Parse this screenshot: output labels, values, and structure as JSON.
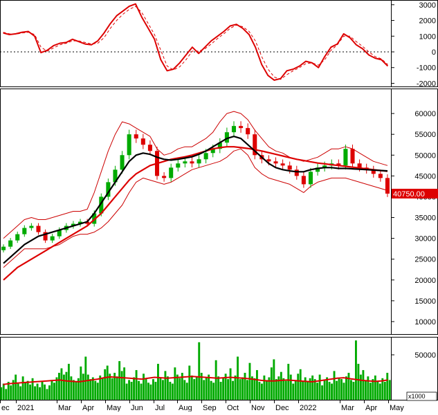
{
  "chart_data": [
    {
      "type": "line",
      "panel": "oscillator",
      "ylim": [
        -2200,
        3300
      ],
      "yticks": [
        "3000",
        "2000",
        "1000",
        "0",
        "-1000",
        "-2000"
      ],
      "ytick_values": [
        3000,
        2000,
        1000,
        0,
        -1000,
        -2000
      ],
      "zero_line": "dotted",
      "colors": {
        "main": "#dd0000",
        "signal": "#dd0000"
      },
      "series": [
        {
          "style": "solid",
          "values": [
            1200,
            1100,
            1150,
            1250,
            1300,
            1000,
            -50,
            100,
            400,
            550,
            600,
            800,
            650,
            500,
            450,
            700,
            1200,
            1800,
            2300,
            2600,
            2900,
            3050,
            2200,
            1500,
            800,
            -500,
            -1200,
            -1100,
            -700,
            -200,
            300,
            -100,
            300,
            700,
            1000,
            1300,
            1650,
            1750,
            1500,
            1100,
            300,
            -800,
            -1500,
            -1800,
            -1700,
            -1200,
            -1100,
            -900,
            -600,
            -700,
            -1000,
            -300,
            300,
            500,
            1150,
            900,
            450,
            200,
            -200,
            -400,
            -500,
            -900
          ]
        },
        {
          "style": "dashed",
          "values": [
            1250,
            1150,
            1120,
            1200,
            1250,
            1100,
            300,
            50,
            250,
            450,
            550,
            700,
            700,
            600,
            500,
            550,
            900,
            1500,
            2000,
            2400,
            2700,
            2900,
            2500,
            1800,
            1100,
            100,
            -900,
            -1150,
            -950,
            -500,
            50,
            50,
            200,
            500,
            850,
            1150,
            1500,
            1700,
            1600,
            1300,
            700,
            -300,
            -1100,
            -1600,
            -1750,
            -1450,
            -1200,
            -1000,
            -750,
            -700,
            -850,
            -500,
            100,
            450,
            1000,
            1000,
            650,
            350,
            0,
            -300,
            -450,
            -800
          ]
        }
      ]
    },
    {
      "type": "candlestick",
      "panel": "price",
      "ylim": [
        7000,
        66000
      ],
      "yticks": [
        "60000",
        "55000",
        "50000",
        "45000",
        "40000",
        "35000",
        "30000",
        "25000",
        "20000",
        "15000",
        "10000"
      ],
      "ytick_values": [
        60000,
        55000,
        50000,
        45000,
        40000,
        35000,
        30000,
        25000,
        20000,
        15000,
        10000
      ],
      "last_price_label": "40750.00",
      "last_price": 40750,
      "colors": {
        "up": "#00aa00",
        "down": "#dd0000",
        "ma_short": "#000000",
        "ma_long": "#dd0000",
        "bands": "#cc0000",
        "label_bg": "#dd0000"
      },
      "close": [
        28000,
        29500,
        31000,
        32500,
        33000,
        31500,
        29500,
        30500,
        32000,
        33000,
        33500,
        34000,
        33500,
        36000,
        40000,
        43500,
        46500,
        50000,
        55000,
        54000,
        52500,
        51000,
        45000,
        44500,
        47000,
        48000,
        48500,
        48000,
        49000,
        50500,
        51500,
        53000,
        55500,
        57000,
        56500,
        55000,
        50000,
        49000,
        48500,
        48000,
        47500,
        46500,
        45000,
        43000,
        46000,
        47000,
        47500,
        48000,
        47500,
        51500,
        48000,
        47000,
        46500,
        45500,
        44500,
        40750
      ],
      "ma_short": [
        24000,
        25500,
        27000,
        28500,
        29500,
        30500,
        31000,
        31500,
        32000,
        32500,
        33000,
        33500,
        34000,
        36000,
        38500,
        41000,
        43500,
        46000,
        48500,
        50000,
        50500,
        50200,
        49500,
        49000,
        48800,
        49000,
        49300,
        49600,
        50200,
        51000,
        52000,
        53000,
        54000,
        54500,
        54000,
        52500,
        51000,
        49500,
        48000,
        47000,
        46500,
        46200,
        46000,
        46000,
        46500,
        46800,
        47000,
        47000,
        46800,
        46800,
        46700,
        46600,
        46500,
        46400,
        46300,
        46200
      ],
      "ma_long": [
        20000,
        21500,
        23000,
        24000,
        25000,
        26000,
        27000,
        28000,
        29000,
        30000,
        31000,
        32000,
        33000,
        34500,
        36000,
        38000,
        40000,
        42000,
        44000,
        45500,
        46500,
        47500,
        48000,
        48500,
        49000,
        49300,
        49600,
        50000,
        50500,
        51000,
        51500,
        51800,
        52000,
        52000,
        51800,
        51600,
        51300,
        51000,
        50600,
        50200,
        49800,
        49400,
        49000,
        48700,
        48400,
        48100,
        47900,
        47700,
        47500,
        47300,
        47100,
        46900,
        46700,
        46500,
        46300,
        46100
      ],
      "band_upper": [
        30000,
        31500,
        33000,
        34500,
        35000,
        34500,
        34500,
        35000,
        35500,
        36000,
        36500,
        36500,
        37000,
        41000,
        46000,
        51000,
        55000,
        58000,
        57500,
        56500,
        55500,
        54500,
        51500,
        50000,
        50500,
        51500,
        52000,
        52000,
        53000,
        54000,
        55500,
        58000,
        60000,
        60500,
        60000,
        58500,
        56000,
        54000,
        52000,
        51000,
        50500,
        49500,
        49000,
        48500,
        49000,
        49500,
        50500,
        51500,
        51500,
        52000,
        51500,
        50500,
        49500,
        48500,
        48000,
        47500
      ],
      "band_lower": [
        23000,
        24500,
        26000,
        27500,
        27500,
        27500,
        27500,
        28000,
        28500,
        29500,
        30500,
        31000,
        31000,
        31500,
        32500,
        34000,
        36000,
        38000,
        41000,
        43500,
        44500,
        44000,
        43500,
        43000,
        43500,
        44500,
        45500,
        46500,
        47000,
        47500,
        48000,
        48500,
        49500,
        51000,
        51500,
        50000,
        47000,
        45500,
        44500,
        44000,
        43500,
        43000,
        42000,
        41000,
        42500,
        43500,
        44000,
        44500,
        44500,
        44500,
        44000,
        43500,
        43000,
        42500,
        42000,
        41500
      ]
    },
    {
      "type": "bar",
      "panel": "volume",
      "ylim": [
        0,
        70000
      ],
      "yticks": [
        "50000"
      ],
      "ytick_values": [
        50000
      ],
      "unit_label": "x1000",
      "colors": {
        "bars": "#00aa00",
        "avg": "#dd0000"
      },
      "values": [
        14000,
        18000,
        12000,
        20000,
        16000,
        22000,
        28000,
        18000,
        15000,
        26000,
        19000,
        21000,
        17000,
        24000,
        15000,
        18000,
        14000,
        20000,
        17000,
        12000,
        16000,
        22000,
        19000,
        25000,
        30000,
        35000,
        28000,
        31000,
        40000,
        26000,
        22000,
        20000,
        24000,
        37000,
        29000,
        48000,
        28000,
        23000,
        25000,
        21000,
        19000,
        27000,
        24000,
        34000,
        38000,
        29000,
        24000,
        30000,
        26000,
        43000,
        32000,
        36000,
        18000,
        22000,
        20000,
        25000,
        33000,
        21000,
        18000,
        29000,
        24000,
        19000,
        17000,
        23000,
        20000,
        40000,
        25000,
        22000,
        32000,
        26000,
        20000,
        18000,
        36000,
        28000,
        24000,
        30000,
        22000,
        19000,
        38000,
        27000,
        23000,
        26000,
        64000,
        30000,
        22000,
        25000,
        28000,
        21000,
        19000,
        44000,
        26000,
        20000,
        24000,
        29000,
        23000,
        35000,
        21000,
        27000,
        48000,
        23000,
        25000,
        30000,
        22000,
        41000,
        26000,
        24000,
        33000,
        20000,
        18000,
        27000,
        22000,
        25000,
        36000,
        45000,
        23000,
        26000,
        31000,
        24000,
        21000,
        40000,
        28000,
        18000,
        22000,
        29000,
        34000,
        21000,
        25000,
        20000,
        24000,
        27000,
        23000,
        19000,
        28000,
        16000,
        22000,
        25000,
        20000,
        18000,
        32000,
        21000,
        24000,
        23000,
        19000,
        26000,
        30000,
        22000,
        20000,
        66000,
        40000,
        28000,
        33000,
        22000,
        26000,
        19000,
        23000,
        27000,
        21000,
        18000,
        24000,
        20000,
        30000,
        22000
      ],
      "avg": [
        17000,
        18000,
        18500,
        19000,
        19500,
        20000,
        20500,
        21000,
        21500,
        22000,
        21000,
        20500,
        20000,
        21000,
        22000,
        23000,
        24500,
        25500,
        25000,
        24500,
        24000,
        23500,
        23000,
        24000,
        25000,
        24500,
        24000,
        24500,
        25000,
        25500,
        26000,
        25500,
        25000,
        24500,
        24000,
        24500,
        25000,
        24500,
        24000,
        23500,
        22500,
        21500,
        21000,
        21000,
        21500,
        22000,
        21500,
        21000,
        20500,
        20000,
        21000,
        22000,
        23000,
        24000,
        24500,
        23500,
        22500,
        21500,
        21000,
        20500,
        21000,
        22000
      ]
    }
  ],
  "x_axis": {
    "labels": [
      "ec",
      "2021",
      "Mar",
      "Apr",
      "May",
      "Jun",
      "Jul",
      "Aug",
      "Sep",
      "Oct",
      "Nov",
      "Dec",
      "2022",
      "Mar",
      "Apr",
      "May"
    ]
  }
}
